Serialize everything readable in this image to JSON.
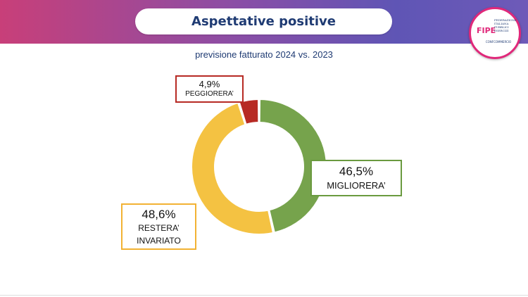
{
  "header": {
    "title": "Aspettative positive"
  },
  "logo": {
    "acronym": "FIPE",
    "name": "FEDERAZIONE ITALIANA PUBBLICI ESERCIZI",
    "sub": "CONFCOMMERCIO"
  },
  "colors": {
    "peggiorera": "#b72a24",
    "migliorera": "#76a34c",
    "restera": "#f4c242"
  },
  "chart_data": {
    "type": "pie",
    "subtitle": "previsione fatturato 2024 vs. 2023",
    "donut": true,
    "slices": [
      {
        "key": "migliorera",
        "label": "MIGLIORERA’",
        "value": 46.5,
        "value_label": "46,5%",
        "color": "#76a34c"
      },
      {
        "key": "restera",
        "label": "RESTERA’ INVARIATO",
        "value": 48.6,
        "value_label": "48,6%",
        "color": "#f4c242"
      },
      {
        "key": "peggiorera",
        "label": "PEGGIORERA’",
        "value": 4.9,
        "value_label": "4,9%",
        "color": "#b72a24"
      }
    ]
  }
}
